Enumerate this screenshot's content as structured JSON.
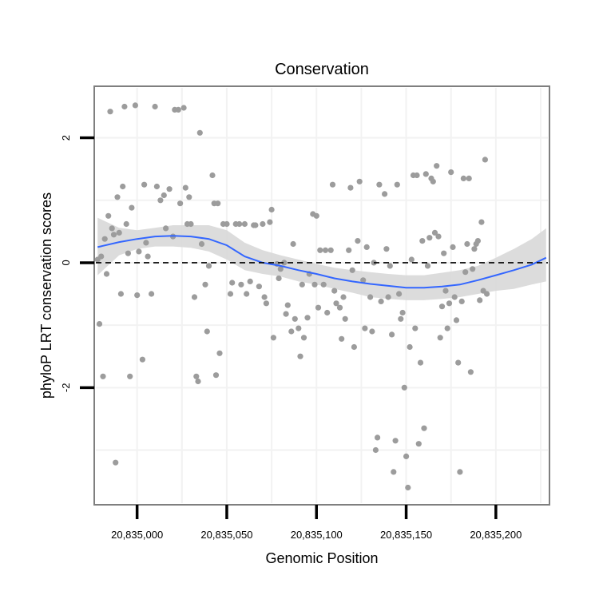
{
  "chart_data": {
    "type": "scatter",
    "title": "Conservation",
    "xlabel": "Genomic Position",
    "ylabel": "phyloP LRT conservation scores",
    "xlim": [
      20834977,
      20835229
    ],
    "ylim": [
      -3.85,
      2.8
    ],
    "x_ticks": [
      20835000,
      20835050,
      20835100,
      20835150,
      20835200
    ],
    "x_tick_labels": [
      "20,835,000",
      "20,835,050",
      "20,835,100",
      "20,835,150",
      "20,835,200"
    ],
    "y_ticks": [
      -2,
      0,
      2
    ],
    "y_tick_labels": [
      "-2",
      "0",
      "2"
    ],
    "reference_line": {
      "y": 0,
      "style": "dashed"
    },
    "grid": true,
    "colors": {
      "points": "#9c9c9c",
      "smooth": "#3366ff",
      "band": "#d8d8d8",
      "panel_border": "#7f7f7f",
      "grid": "#f2f2f2"
    },
    "series": [
      {
        "name": "phyloP",
        "points": [
          [
            20834978,
            0.05
          ],
          [
            20834979,
            -0.98
          ],
          [
            20834980,
            0.1
          ],
          [
            20834981,
            -1.82
          ],
          [
            20834982,
            0.38
          ],
          [
            20834983,
            -0.18
          ],
          [
            20834984,
            0.75
          ],
          [
            20834985,
            2.42
          ],
          [
            20834986,
            0.55
          ],
          [
            20834987,
            0.45
          ],
          [
            20834988,
            -3.2
          ],
          [
            20834989,
            1.05
          ],
          [
            20834990,
            0.48
          ],
          [
            20834991,
            -0.5
          ],
          [
            20834992,
            1.22
          ],
          [
            20834993,
            2.5
          ],
          [
            20834994,
            0.62
          ],
          [
            20834995,
            0.15
          ],
          [
            20834996,
            -1.82
          ],
          [
            20834997,
            0.88
          ],
          [
            20834999,
            2.52
          ],
          [
            20835000,
            -0.52
          ],
          [
            20835001,
            0.18
          ],
          [
            20835003,
            -1.55
          ],
          [
            20835004,
            1.25
          ],
          [
            20835005,
            0.32
          ],
          [
            20835006,
            0.1
          ],
          [
            20835008,
            -0.5
          ],
          [
            20835010,
            2.5
          ],
          [
            20835011,
            1.22
          ],
          [
            20835013,
            1.0
          ],
          [
            20835015,
            1.08
          ],
          [
            20835016,
            0.55
          ],
          [
            20835018,
            1.18
          ],
          [
            20835020,
            0.42
          ],
          [
            20835021,
            2.45
          ],
          [
            20835023,
            2.45
          ],
          [
            20835024,
            0.95
          ],
          [
            20835026,
            2.48
          ],
          [
            20835027,
            1.2
          ],
          [
            20835028,
            0.62
          ],
          [
            20835029,
            1.05
          ],
          [
            20835030,
            0.62
          ],
          [
            20835032,
            -0.55
          ],
          [
            20835033,
            -1.82
          ],
          [
            20835034,
            -1.9
          ],
          [
            20835035,
            2.08
          ],
          [
            20835036,
            0.3
          ],
          [
            20835038,
            -0.35
          ],
          [
            20835039,
            -1.1
          ],
          [
            20835040,
            -0.05
          ],
          [
            20835042,
            1.4
          ],
          [
            20835043,
            0.95
          ],
          [
            20835044,
            -1.8
          ],
          [
            20835045,
            0.95
          ],
          [
            20835046,
            -1.45
          ],
          [
            20835048,
            0.62
          ],
          [
            20835050,
            0.62
          ],
          [
            20835052,
            -0.5
          ],
          [
            20835053,
            -0.32
          ],
          [
            20835055,
            0.62
          ],
          [
            20835057,
            0.62
          ],
          [
            20835058,
            -0.35
          ],
          [
            20835060,
            0.62
          ],
          [
            20835061,
            -0.5
          ],
          [
            20835063,
            -0.3
          ],
          [
            20835065,
            0.6
          ],
          [
            20835066,
            0.6
          ],
          [
            20835068,
            -0.38
          ],
          [
            20835070,
            0.62
          ],
          [
            20835071,
            -0.55
          ],
          [
            20835072,
            -0.65
          ],
          [
            20835074,
            0.65
          ],
          [
            20835075,
            0.85
          ],
          [
            20835076,
            -1.2
          ],
          [
            20835078,
            -0.02
          ],
          [
            20835079,
            -0.25
          ],
          [
            20835080,
            -0.1
          ],
          [
            20835082,
            0.0
          ],
          [
            20835083,
            -0.82
          ],
          [
            20835084,
            -0.68
          ],
          [
            20835086,
            -1.1
          ],
          [
            20835087,
            0.3
          ],
          [
            20835088,
            -0.9
          ],
          [
            20835090,
            -1.05
          ],
          [
            20835091,
            -1.5
          ],
          [
            20835092,
            -0.35
          ],
          [
            20835093,
            -1.2
          ],
          [
            20835095,
            -0.88
          ],
          [
            20835096,
            -0.18
          ],
          [
            20835098,
            0.78
          ],
          [
            20835099,
            -0.35
          ],
          [
            20835100,
            0.75
          ],
          [
            20835101,
            -0.72
          ],
          [
            20835102,
            0.2
          ],
          [
            20835104,
            -0.35
          ],
          [
            20835105,
            0.2
          ],
          [
            20835106,
            -0.8
          ],
          [
            20835108,
            0.2
          ],
          [
            20835109,
            1.25
          ],
          [
            20835110,
            -0.45
          ],
          [
            20835111,
            -0.65
          ],
          [
            20835113,
            -0.72
          ],
          [
            20835114,
            -1.22
          ],
          [
            20835115,
            -0.55
          ],
          [
            20835116,
            -0.9
          ],
          [
            20835118,
            0.2
          ],
          [
            20835119,
            1.2
          ],
          [
            20835120,
            -0.12
          ],
          [
            20835121,
            -1.35
          ],
          [
            20835123,
            0.35
          ],
          [
            20835124,
            1.3
          ],
          [
            20835126,
            -0.28
          ],
          [
            20835127,
            -1.05
          ],
          [
            20835128,
            0.25
          ],
          [
            20835130,
            -0.55
          ],
          [
            20835131,
            -1.1
          ],
          [
            20835132,
            0.0
          ],
          [
            20835133,
            -3.0
          ],
          [
            20835134,
            -2.8
          ],
          [
            20835135,
            1.25
          ],
          [
            20835136,
            -0.62
          ],
          [
            20835138,
            1.1
          ],
          [
            20835139,
            0.22
          ],
          [
            20835140,
            -0.55
          ],
          [
            20835141,
            -0.05
          ],
          [
            20835142,
            -1.15
          ],
          [
            20835143,
            -3.35
          ],
          [
            20835144,
            -2.85
          ],
          [
            20835145,
            1.25
          ],
          [
            20835146,
            -0.5
          ],
          [
            20835147,
            -0.9
          ],
          [
            20835148,
            -0.8
          ],
          [
            20835149,
            -2.0
          ],
          [
            20835150,
            -3.1
          ],
          [
            20835151,
            -3.6
          ],
          [
            20835152,
            -1.35
          ],
          [
            20835153,
            0.05
          ],
          [
            20835154,
            1.4
          ],
          [
            20835155,
            -1.05
          ],
          [
            20835156,
            1.4
          ],
          [
            20835157,
            -2.9
          ],
          [
            20835158,
            -1.6
          ],
          [
            20835159,
            0.35
          ],
          [
            20835160,
            -2.65
          ],
          [
            20835161,
            1.42
          ],
          [
            20835162,
            -0.05
          ],
          [
            20835163,
            0.4
          ],
          [
            20835164,
            1.35
          ],
          [
            20835165,
            1.3
          ],
          [
            20835166,
            0.48
          ],
          [
            20835167,
            1.55
          ],
          [
            20835168,
            0.42
          ],
          [
            20835169,
            -1.2
          ],
          [
            20835170,
            -0.7
          ],
          [
            20835171,
            0.15
          ],
          [
            20835172,
            -0.45
          ],
          [
            20835173,
            -1.05
          ],
          [
            20835174,
            -0.65
          ],
          [
            20835175,
            1.45
          ],
          [
            20835176,
            0.25
          ],
          [
            20835177,
            -0.55
          ],
          [
            20835178,
            -0.92
          ],
          [
            20835179,
            -1.6
          ],
          [
            20835180,
            -3.35
          ],
          [
            20835181,
            -0.62
          ],
          [
            20835182,
            1.35
          ],
          [
            20835183,
            -0.15
          ],
          [
            20835184,
            0.3
          ],
          [
            20835185,
            1.35
          ],
          [
            20835186,
            -1.75
          ],
          [
            20835187,
            -0.1
          ],
          [
            20835188,
            0.22
          ],
          [
            20835189,
            0.3
          ],
          [
            20835190,
            0.35
          ],
          [
            20835191,
            -0.6
          ],
          [
            20835192,
            0.65
          ],
          [
            20835193,
            -0.45
          ],
          [
            20835194,
            1.65
          ],
          [
            20835195,
            -0.5
          ]
        ]
      }
    ],
    "smooth": {
      "name": "loess",
      "x": [
        20834978,
        20834990,
        20835000,
        20835010,
        20835020,
        20835030,
        20835040,
        20835050,
        20835060,
        20835070,
        20835080,
        20835090,
        20835100,
        20835110,
        20835120,
        20835130,
        20835140,
        20835150,
        20835160,
        20835170,
        20835180,
        20835190,
        20835200,
        20835210,
        20835220,
        20835228
      ],
      "y": [
        0.25,
        0.33,
        0.38,
        0.42,
        0.43,
        0.42,
        0.38,
        0.28,
        0.1,
        0.0,
        -0.05,
        -0.12,
        -0.18,
        -0.25,
        -0.3,
        -0.34,
        -0.37,
        -0.4,
        -0.4,
        -0.38,
        -0.35,
        -0.28,
        -0.2,
        -0.12,
        -0.03,
        0.08
      ],
      "lower": [
        -0.2,
        0.12,
        0.22,
        0.26,
        0.26,
        0.24,
        0.18,
        0.05,
        -0.12,
        -0.18,
        -0.22,
        -0.3,
        -0.35,
        -0.42,
        -0.48,
        -0.55,
        -0.58,
        -0.6,
        -0.6,
        -0.58,
        -0.55,
        -0.5,
        -0.45,
        -0.42,
        -0.35,
        -0.3
      ],
      "upper": [
        0.72,
        0.56,
        0.52,
        0.56,
        0.6,
        0.6,
        0.6,
        0.52,
        0.32,
        0.2,
        0.12,
        0.05,
        -0.02,
        -0.08,
        -0.12,
        -0.15,
        -0.18,
        -0.2,
        -0.2,
        -0.16,
        -0.12,
        -0.05,
        0.08,
        0.22,
        0.38,
        0.55
      ]
    }
  }
}
